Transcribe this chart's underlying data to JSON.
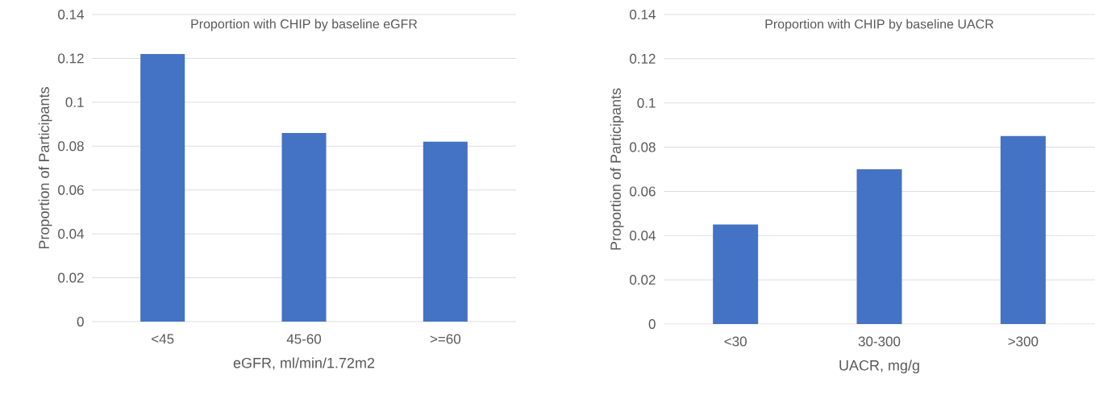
{
  "chart_data": [
    {
      "type": "bar",
      "title": "Proportion with CHIP by baseline eGFR",
      "xlabel": "eGFR, ml/min/1.72m2",
      "ylabel": "Proportion of Participants",
      "categories": [
        "<45",
        "45-60",
        ">=60"
      ],
      "values": [
        0.122,
        0.086,
        0.082
      ],
      "color": "#4472c4",
      "ylim": [
        0,
        0.14
      ],
      "yticks": [
        0,
        0.02,
        0.04,
        0.06,
        0.08,
        0.1,
        0.12,
        0.14
      ],
      "grid": "y"
    },
    {
      "type": "bar",
      "title": "Proportion with CHIP by baseline UACR",
      "xlabel": "UACR, mg/g",
      "ylabel": "Proportion of Participants",
      "categories": [
        "<30",
        "30-300",
        ">300"
      ],
      "values": [
        0.045,
        0.07,
        0.085
      ],
      "color": "#4472c4",
      "ylim": [
        0,
        0.14
      ],
      "yticks": [
        0,
        0.02,
        0.04,
        0.06,
        0.08,
        0.1,
        0.12,
        0.14
      ],
      "grid": "y"
    }
  ]
}
